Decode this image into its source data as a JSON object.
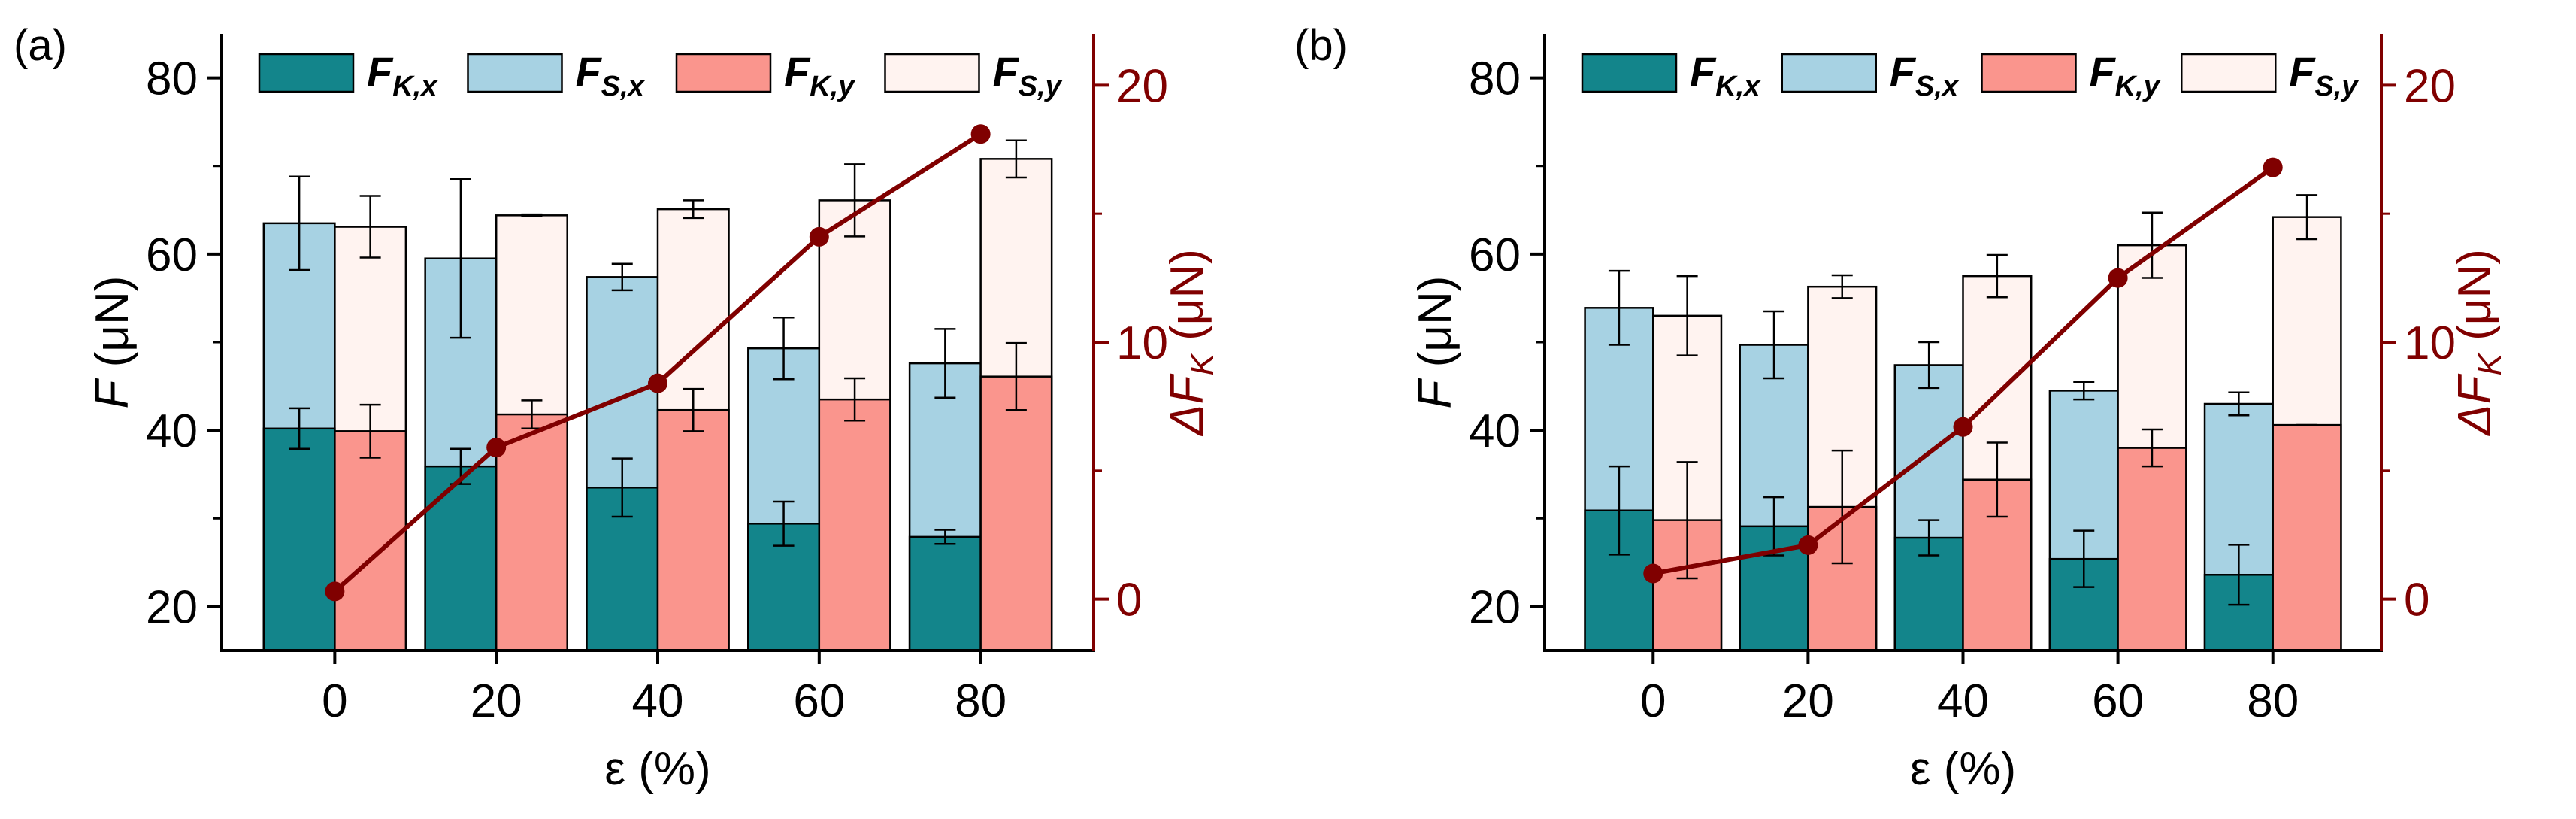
{
  "colors": {
    "fkx": "#13858b",
    "fsx": "#a7d2e3",
    "fky": "#fa958d",
    "fsy": "#fff3f0",
    "delta": "#800000",
    "axis": "#000000"
  },
  "legend": {
    "fkx": {
      "main": "F",
      "sub": "K,x"
    },
    "fsx": {
      "main": "F",
      "sub": "S,x"
    },
    "fky": {
      "main": "F",
      "sub": "K,y"
    },
    "fsy": {
      "main": "F",
      "sub": "S,y"
    }
  },
  "chart_data": [
    {
      "type": "bar",
      "panel_label": "(a)",
      "categories": [
        "0",
        "20",
        "40",
        "60",
        "80"
      ],
      "xlabel": "ε (%)",
      "ylabel": {
        "main": "F",
        "unit": " (μN)"
      },
      "ylabel_right": {
        "main": "ΔF",
        "sub": "K",
        "unit": " (μN)"
      },
      "ylim": [
        15,
        85
      ],
      "yticks": [
        20,
        40,
        60,
        80
      ],
      "ylim_right": [
        -2,
        22
      ],
      "yticks_right": [
        0,
        10,
        20
      ],
      "series": [
        {
          "key": "fkx",
          "values": [
            40.2,
            35.9,
            33.5,
            29.4,
            27.9
          ],
          "errors": [
            2.3,
            2.0,
            3.3,
            2.5,
            0.8
          ]
        },
        {
          "key": "fsx",
          "values": [
            63.5,
            59.5,
            57.4,
            49.3,
            47.6
          ],
          "errors": [
            5.3,
            9.0,
            1.5,
            3.5,
            3.9
          ]
        },
        {
          "key": "fky",
          "values": [
            39.9,
            41.8,
            42.3,
            43.5,
            46.1
          ],
          "errors": [
            3.0,
            1.6,
            2.4,
            2.4,
            3.8
          ]
        },
        {
          "key": "fsy",
          "values": [
            63.1,
            64.4,
            65.1,
            66.1,
            70.8
          ],
          "errors": [
            3.5,
            0.1,
            1.0,
            4.1,
            2.1
          ]
        }
      ],
      "delta": {
        "x": [
          0,
          20,
          40,
          60,
          80
        ],
        "values": [
          0.3,
          5.9,
          8.4,
          14.1,
          18.1
        ]
      }
    },
    {
      "type": "bar",
      "panel_label": "(b)",
      "categories": [
        "0",
        "20",
        "40",
        "60",
        "80"
      ],
      "xlabel": "ε (%)",
      "ylabel": {
        "main": "F",
        "unit": " (μN)"
      },
      "ylabel_right": {
        "main": "ΔF",
        "sub": "K",
        "unit": " (μN)"
      },
      "ylim": [
        15,
        85
      ],
      "yticks": [
        20,
        40,
        60,
        80
      ],
      "ylim_right": [
        -2,
        22
      ],
      "yticks_right": [
        0,
        10,
        20
      ],
      "series": [
        {
          "key": "fkx",
          "values": [
            30.9,
            29.1,
            27.8,
            25.4,
            23.6
          ],
          "errors": [
            5.0,
            3.3,
            2.0,
            3.2,
            3.4
          ]
        },
        {
          "key": "fsx",
          "values": [
            53.9,
            49.7,
            47.4,
            44.5,
            43.0
          ],
          "errors": [
            4.2,
            3.8,
            2.6,
            1.0,
            1.3
          ]
        },
        {
          "key": "fky",
          "values": [
            29.8,
            31.3,
            34.4,
            38.0,
            40.6
          ],
          "errors": [
            6.6,
            6.4,
            4.2,
            2.1,
            0.0
          ]
        },
        {
          "key": "fsy",
          "values": [
            53.0,
            56.3,
            57.5,
            61.0,
            64.2
          ],
          "errors": [
            4.5,
            1.3,
            2.4,
            3.7,
            2.5
          ]
        }
      ],
      "delta": {
        "x": [
          0,
          20,
          40,
          60,
          80
        ],
        "values": [
          1.0,
          2.1,
          6.7,
          12.5,
          16.8
        ]
      }
    }
  ]
}
